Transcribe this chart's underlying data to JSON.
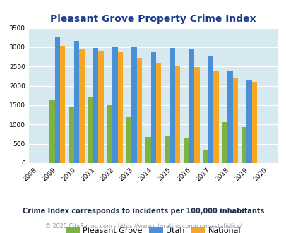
{
  "title": "Pleasant Grove Property Crime Index",
  "years": [
    2008,
    2009,
    2010,
    2011,
    2012,
    2013,
    2014,
    2015,
    2016,
    2017,
    2018,
    2019,
    2020
  ],
  "bar_years": [
    2009,
    2010,
    2011,
    2012,
    2013,
    2014,
    2015,
    2016,
    2017,
    2018,
    2019
  ],
  "pleasant_grove": [
    1640,
    1470,
    1720,
    1500,
    1190,
    680,
    700,
    660,
    350,
    1060,
    940
  ],
  "utah": [
    3250,
    3160,
    2980,
    2995,
    2990,
    2880,
    2980,
    2940,
    2760,
    2400,
    2140
  ],
  "national": [
    3030,
    2960,
    2900,
    2870,
    2720,
    2600,
    2500,
    2480,
    2390,
    2210,
    2100
  ],
  "pleasant_grove_color": "#7cb342",
  "utah_color": "#4a90d9",
  "national_color": "#f5a623",
  "bg_color": "#d6e8f0",
  "ylim": [
    0,
    3500
  ],
  "yticks": [
    0,
    500,
    1000,
    1500,
    2000,
    2500,
    3000,
    3500
  ],
  "title_color": "#1a3c8e",
  "legend_labels": [
    "Pleasant Grove",
    "Utah",
    "National"
  ],
  "footnote1": "Crime Index corresponds to incidents per 100,000 inhabitants",
  "footnote2": "© 2025 CityRating.com - https://www.cityrating.com/crime-statistics/",
  "footnote1_color": "#1a2a4a",
  "footnote2_color": "#8899aa"
}
